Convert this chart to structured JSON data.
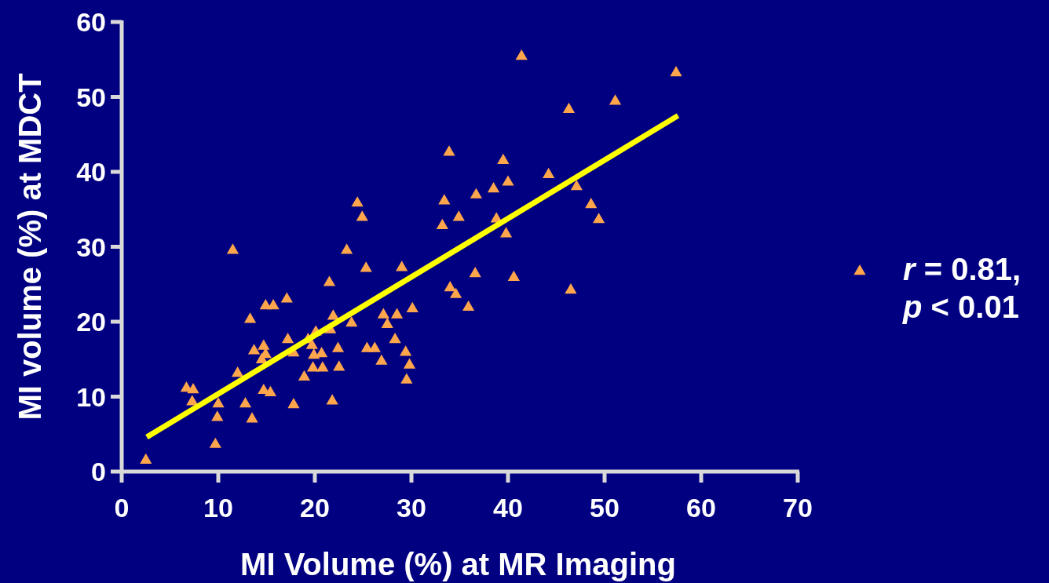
{
  "chart_data": {
    "type": "scatter",
    "xlabel": "MI Volume (%) at MR Imaging",
    "ylabel": "MI volume (%) at MDCT",
    "xlim": [
      0,
      70
    ],
    "xticks": [
      0,
      10,
      20,
      30,
      40,
      50,
      60,
      70
    ],
    "ylim": [
      0,
      60
    ],
    "yticks": [
      0,
      10,
      20,
      30,
      40,
      50,
      60
    ],
    "grid": false,
    "legend": "right",
    "marker": "triangle",
    "series": [
      {
        "name": "r = 0.81, p < 0.01",
        "color": "#ffa64d",
        "x": [
          2.5,
          6.7,
          7.4,
          7.3,
          9.7,
          9.9,
          10.0,
          11.5,
          12.0,
          12.8,
          13.3,
          13.5,
          13.7,
          14.5,
          14.7,
          14.7,
          14.9,
          14.9,
          15.4,
          15.7,
          17.1,
          17.2,
          17.8,
          17.8,
          18.9,
          19.3,
          19.7,
          19.8,
          20.1,
          19.9,
          20.7,
          20.8,
          21.5,
          21.6,
          21.9,
          21.8,
          22.4,
          22.5,
          23.3,
          23.8,
          24.4,
          24.9,
          25.3,
          25.4,
          26.2,
          26.9,
          27.1,
          27.5,
          28.3,
          28.5,
          29.0,
          29.4,
          29.5,
          29.8,
          30.1,
          33.2,
          33.4,
          33.9,
          34.0,
          34.6,
          34.9,
          35.9,
          36.6,
          36.7,
          38.5,
          38.8,
          39.5,
          39.8,
          40.0,
          40.6,
          41.4,
          44.2,
          46.3,
          46.5,
          47.1,
          48.6,
          49.4,
          51.1,
          57.4
        ],
        "values": [
          1.6,
          11.2,
          11.0,
          9.4,
          3.7,
          7.3,
          9.1,
          29.6,
          13.2,
          9.1,
          20.4,
          7.1,
          16.2,
          15.0,
          16.8,
          10.9,
          22.2,
          15.7,
          10.6,
          22.2,
          23.1,
          17.7,
          15.9,
          9.0,
          12.7,
          17.7,
          16.9,
          13.9,
          18.7,
          15.6,
          15.8,
          13.9,
          25.3,
          19.0,
          20.8,
          9.5,
          16.5,
          14.0,
          29.6,
          19.9,
          35.9,
          34.0,
          27.2,
          16.5,
          16.5,
          14.8,
          21.0,
          19.7,
          17.7,
          21.0,
          27.3,
          16.0,
          12.3,
          14.3,
          21.8,
          32.9,
          36.2,
          42.7,
          24.6,
          23.7,
          34.0,
          22.0,
          26.5,
          37.0,
          37.8,
          33.8,
          41.6,
          31.8,
          38.7,
          26.0,
          55.5,
          39.7,
          48.4,
          24.3,
          38.1,
          35.7,
          33.7,
          49.5,
          53.3
        ]
      },
      {
        "type": "line",
        "color": "#ffff00",
        "x": [
          2.6,
          57.6
        ],
        "values": [
          4.6,
          47.5
        ],
        "marker": "none",
        "line_style": "solid"
      }
    ]
  }
}
